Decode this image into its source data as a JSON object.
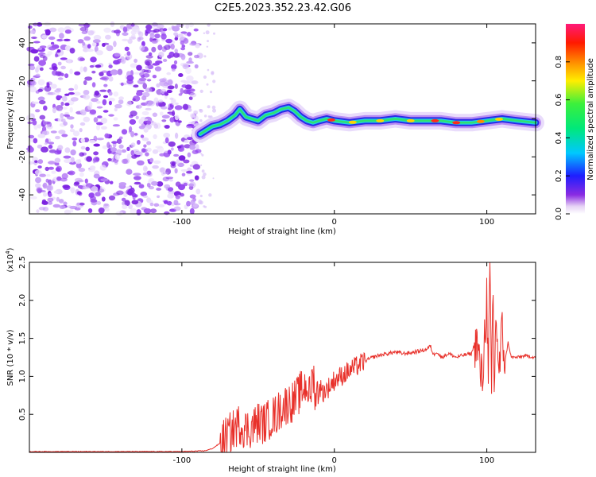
{
  "title": "C2E5.2023.352.23.42.G06",
  "chart_data": [
    {
      "type": "heatmap",
      "xlabel": "Height of straight line (km)",
      "ylabel": "Frequency (Hz)",
      "xlim": [
        -200,
        132
      ],
      "ylim": [
        -50,
        50
      ],
      "xticks": [
        -100,
        0,
        100
      ],
      "xtick_labels": [
        "-100",
        "0",
        "100"
      ],
      "yticks": [
        -40,
        -20,
        0,
        20,
        40
      ],
      "ytick_labels": [
        "-40",
        "-20",
        "0",
        "20",
        "40"
      ],
      "colorbar": {
        "label": "Normalized spectral amplitude",
        "range": [
          0,
          1
        ],
        "ticks": [
          0.0,
          0.2,
          0.4,
          0.6,
          0.8
        ],
        "tick_labels": [
          "0.0",
          "0.2",
          "0.4",
          "0.6",
          "0.8"
        ]
      },
      "noise_region_x": [
        -200,
        -88
      ],
      "ridge": [
        [
          -88,
          -8
        ],
        [
          -84,
          -6
        ],
        [
          -80,
          -4
        ],
        [
          -75,
          -3
        ],
        [
          -70,
          -1
        ],
        [
          -65,
          2
        ],
        [
          -62,
          5
        ],
        [
          -58,
          1
        ],
        [
          -54,
          0
        ],
        [
          -50,
          -1
        ],
        [
          -45,
          2
        ],
        [
          -40,
          3
        ],
        [
          -35,
          5
        ],
        [
          -30,
          6
        ],
        [
          -26,
          4
        ],
        [
          -22,
          1
        ],
        [
          -18,
          -1
        ],
        [
          -14,
          -2
        ],
        [
          -10,
          -1
        ],
        [
          -5,
          0
        ],
        [
          0,
          -1
        ],
        [
          10,
          -2
        ],
        [
          20,
          -1
        ],
        [
          30,
          -1
        ],
        [
          40,
          0
        ],
        [
          50,
          -1
        ],
        [
          60,
          -1
        ],
        [
          70,
          -1
        ],
        [
          80,
          -2
        ],
        [
          90,
          -2
        ],
        [
          100,
          -1
        ],
        [
          110,
          0
        ],
        [
          120,
          -1
        ],
        [
          132,
          -2
        ]
      ]
    },
    {
      "type": "line",
      "xlabel": "Height of straight line (km)",
      "ylabel": "SNR (10 * v/v)",
      "multiplier": "(x10^4)",
      "xlim": [
        -200,
        132
      ],
      "ylim": [
        0,
        2.5
      ],
      "xticks": [
        -100,
        0,
        100
      ],
      "xtick_labels": [
        "-100",
        "0",
        "100"
      ],
      "yticks": [
        0.5,
        1.0,
        1.5,
        2.0,
        2.5
      ],
      "ytick_labels": [
        "0.5",
        "1.0",
        "1.5",
        "2.0",
        "2.5"
      ],
      "color": "#e8302a",
      "series": [
        {
          "x": [
            -200,
            -150,
            -100,
            -85,
            -80,
            -75,
            -70,
            -66,
            -62,
            -58,
            -54,
            -50,
            -46,
            -42,
            -38,
            -34,
            -30,
            -26,
            -22,
            -18,
            -16,
            -14,
            -12,
            -10,
            -8,
            -6,
            -4,
            -2,
            0,
            4,
            8,
            12,
            16,
            20,
            25,
            30,
            35,
            40,
            45,
            50,
            55,
            60,
            63,
            65,
            67,
            70,
            75,
            80,
            85,
            90,
            93,
            95,
            97,
            99,
            100,
            101,
            102,
            103,
            104,
            105,
            106,
            108,
            110,
            112,
            114,
            116,
            120,
            125,
            132
          ],
          "y": [
            0.01,
            0.01,
            0.01,
            0.02,
            0.05,
            0.12,
            0.22,
            0.3,
            0.38,
            0.3,
            0.33,
            0.4,
            0.38,
            0.45,
            0.5,
            0.6,
            0.65,
            0.68,
            0.8,
            0.9,
            0.72,
            1.05,
            0.7,
            0.9,
            0.78,
            0.82,
            0.85,
            0.9,
            0.95,
            1.0,
            1.05,
            1.1,
            1.15,
            1.2,
            1.25,
            1.28,
            1.3,
            1.32,
            1.3,
            1.31,
            1.33,
            1.35,
            1.4,
            1.28,
            1.33,
            1.25,
            1.3,
            1.25,
            1.28,
            1.3,
            1.5,
            1.2,
            0.9,
            1.7,
            2.1,
            0.8,
            2.55,
            0.6,
            2.2,
            0.7,
            1.9,
            1.0,
            1.6,
            1.2,
            1.45,
            1.25,
            1.25,
            1.27,
            1.25
          ]
        }
      ]
    }
  ]
}
